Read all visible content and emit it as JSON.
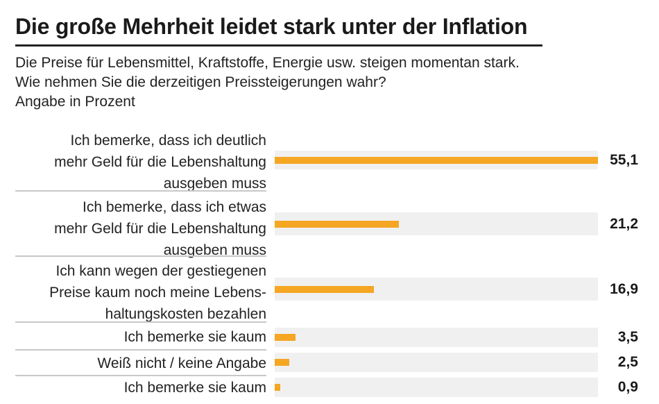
{
  "header": {
    "title": "Die große Mehrheit leidet stark unter der Inflation",
    "subtitle_lines": [
      "Die Preise für Lebensmittel, Kraftstoffe, Energie usw. steigen momentan stark.",
      "Wie nehmen Sie die derzeitigen Preissteigerungen wahr?",
      "Angabe in Prozent"
    ]
  },
  "colors": {
    "bar": "#f5a623",
    "track": "#f0f0f0",
    "separator": "#c8c8c8",
    "text": "#1a1a1a"
  },
  "chart_data": {
    "type": "bar",
    "orientation": "horizontal",
    "title": "Die große Mehrheit leidet stark unter der Inflation",
    "unit": "Prozent",
    "xlim": [
      0,
      55.1
    ],
    "grid": false,
    "legend": "none",
    "categories": [
      "Ich bemerke, dass ich deutlich mehr Geld für die Lebenshaltung ausgeben muss",
      "Ich bemerke, dass ich etwas mehr Geld für die Lebenshaltung ausgeben muss",
      "Ich kann wegen der gestiegenen Preise kaum noch meine Lebenshaltungskosten bezahlen",
      "Ich bemerke sie kaum",
      "Weiß nicht / keine Angabe",
      "Ich bemerke sie kaum"
    ],
    "category_lines": [
      [
        "Ich bemerke, dass ich deutlich",
        "mehr Geld für die Lebenshaltung",
        "ausgeben muss"
      ],
      [
        "Ich bemerke, dass ich etwas",
        "mehr Geld für die Lebenshaltung",
        "ausgeben muss"
      ],
      [
        "Ich kann wegen der gestiegenen",
        "Preise kaum noch meine Lebens-",
        "haltungskosten bezahlen"
      ],
      [
        "Ich bemerke sie kaum"
      ],
      [
        "Weiß nicht / keine Angabe"
      ],
      [
        "Ich bemerke sie kaum"
      ]
    ],
    "values": [
      55.1,
      21.2,
      16.9,
      3.5,
      2.5,
      0.9
    ],
    "value_labels": [
      "55,1",
      "21,2",
      "16,9",
      "3,5",
      "2,5",
      "0,9"
    ]
  }
}
